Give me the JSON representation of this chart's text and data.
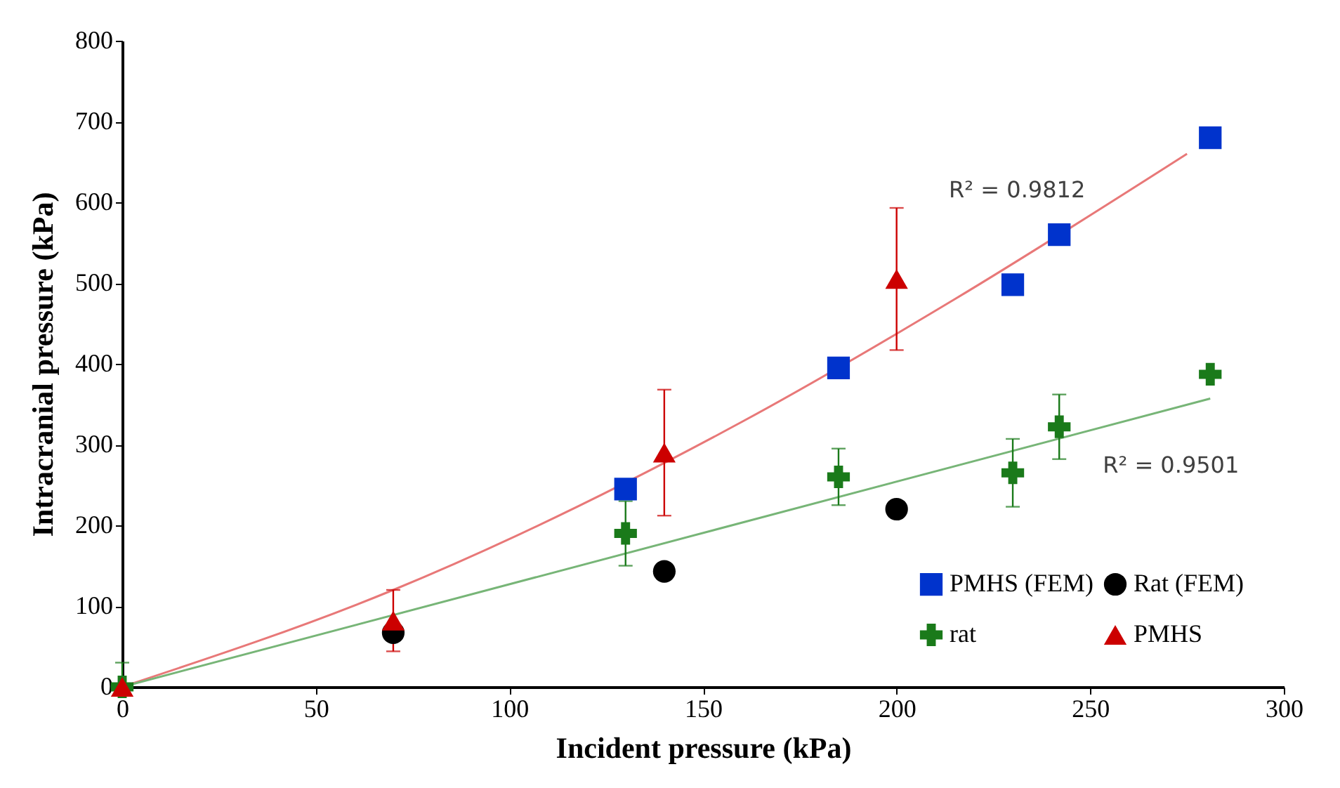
{
  "chart_data": {
    "type": "scatter",
    "xlabel": "Incident pressure (kPa)",
    "ylabel": "Intracranial  pressure  (kPa)",
    "xlim": [
      0,
      300
    ],
    "xticks": [
      0,
      50,
      100,
      150,
      200,
      250,
      300
    ],
    "ylim": [
      0,
      800
    ],
    "yticks": [
      0,
      100,
      200,
      300,
      400,
      500,
      600,
      700,
      800
    ],
    "grid": false,
    "legend": "bottom right",
    "series": [
      {
        "name": "PMHS (FEM)",
        "color": "#0033cc",
        "marker": "square",
        "x": [
          130,
          185,
          230,
          242,
          281
        ],
        "values": [
          245,
          395,
          498,
          560,
          680
        ]
      },
      {
        "name": "Rat (FEM)",
        "color": "#000000",
        "marker": "circle",
        "x": [
          70,
          140,
          200
        ],
        "values": [
          67,
          143,
          220
        ]
      },
      {
        "name": "rat",
        "color": "#1a7a1a",
        "marker": "cross",
        "x": [
          0,
          130,
          185,
          230,
          242,
          281
        ],
        "values": [
          0,
          190,
          260,
          265,
          322,
          387
        ],
        "errors": [
          [
            0,
            30
          ],
          40,
          35,
          42,
          40,
          null
        ]
      },
      {
        "name": "PMHS",
        "color": "#cc0000",
        "marker": "triangle",
        "x": [
          0,
          70,
          140,
          200
        ],
        "values": [
          0,
          82,
          290,
          505
        ],
        "errors": [
          null,
          38,
          78,
          88
        ]
      },
      {
        "type": "line",
        "color": "#e87878",
        "x": [
          0,
          70,
          160,
          215,
          275
        ],
        "values": [
          0,
          120,
          328,
          480,
          660
        ]
      },
      {
        "type": "line",
        "color": "#77b577",
        "x": [
          0,
          281
        ],
        "values": [
          0,
          357
        ]
      }
    ],
    "annotations": [
      "R² = 0.9812",
      "R² = 0.9501"
    ]
  }
}
